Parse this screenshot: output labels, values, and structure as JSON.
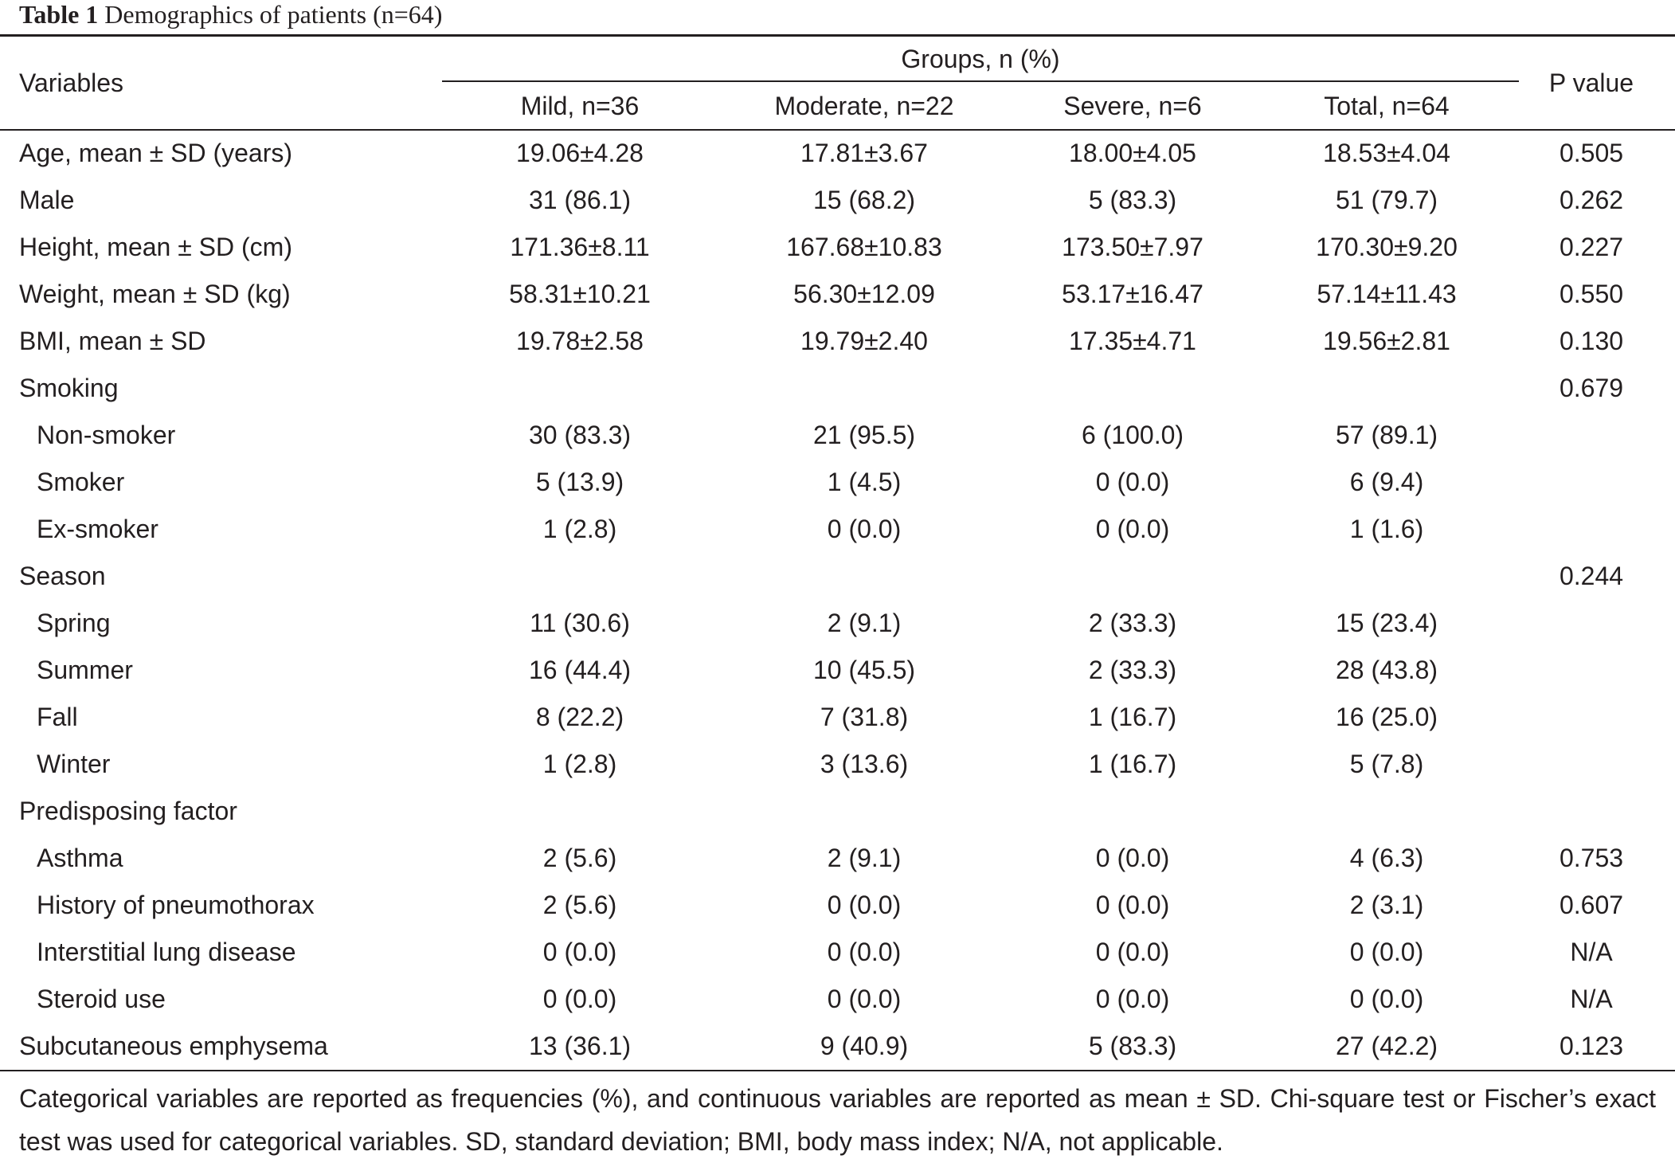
{
  "caption": {
    "number": "Table 1",
    "title": "Demographics of patients (n=64)"
  },
  "header": {
    "variables": "Variables",
    "groups": "Groups, n (%)",
    "p_value": "P value",
    "columns": [
      "Mild, n=36",
      "Moderate, n=22",
      "Severe, n=6",
      "Total, n=64"
    ]
  },
  "rows": [
    {
      "label": "Age, mean ± SD (years)",
      "indent": false,
      "mild": "19.06±4.28",
      "moderate": "17.81±3.67",
      "severe": "18.00±4.05",
      "total": "18.53±4.04",
      "p": "0.505"
    },
    {
      "label": "Male",
      "indent": false,
      "mild": "31 (86.1)",
      "moderate": "15 (68.2)",
      "severe": "5 (83.3)",
      "total": "51 (79.7)",
      "p": "0.262"
    },
    {
      "label": "Height, mean ± SD (cm)",
      "indent": false,
      "mild": "171.36±8.11",
      "moderate": "167.68±10.83",
      "severe": "173.50±7.97",
      "total": "170.30±9.20",
      "p": "0.227"
    },
    {
      "label": "Weight, mean ± SD (kg)",
      "indent": false,
      "mild": "58.31±10.21",
      "moderate": "56.30±12.09",
      "severe": "53.17±16.47",
      "total": "57.14±11.43",
      "p": "0.550"
    },
    {
      "label": "BMI, mean ± SD",
      "indent": false,
      "mild": "19.78±2.58",
      "moderate": "19.79±2.40",
      "severe": "17.35±4.71",
      "total": "19.56±2.81",
      "p": "0.130"
    },
    {
      "label": "Smoking",
      "indent": false,
      "mild": "",
      "moderate": "",
      "severe": "",
      "total": "",
      "p": "0.679"
    },
    {
      "label": "Non-smoker",
      "indent": true,
      "mild": "30 (83.3)",
      "moderate": "21 (95.5)",
      "severe": "6 (100.0)",
      "total": "57 (89.1)",
      "p": ""
    },
    {
      "label": "Smoker",
      "indent": true,
      "mild": "5 (13.9)",
      "moderate": "1 (4.5)",
      "severe": "0 (0.0)",
      "total": "6 (9.4)",
      "p": ""
    },
    {
      "label": "Ex-smoker",
      "indent": true,
      "mild": "1 (2.8)",
      "moderate": "0 (0.0)",
      "severe": "0 (0.0)",
      "total": "1 (1.6)",
      "p": ""
    },
    {
      "label": "Season",
      "indent": false,
      "mild": "",
      "moderate": "",
      "severe": "",
      "total": "",
      "p": "0.244"
    },
    {
      "label": "Spring",
      "indent": true,
      "mild": "11 (30.6)",
      "moderate": "2 (9.1)",
      "severe": "2 (33.3)",
      "total": "15 (23.4)",
      "p": ""
    },
    {
      "label": "Summer",
      "indent": true,
      "mild": "16 (44.4)",
      "moderate": "10 (45.5)",
      "severe": "2 (33.3)",
      "total": "28 (43.8)",
      "p": ""
    },
    {
      "label": "Fall",
      "indent": true,
      "mild": "8 (22.2)",
      "moderate": "7 (31.8)",
      "severe": "1 (16.7)",
      "total": "16 (25.0)",
      "p": ""
    },
    {
      "label": "Winter",
      "indent": true,
      "mild": "1 (2.8)",
      "moderate": "3 (13.6)",
      "severe": "1 (16.7)",
      "total": "5 (7.8)",
      "p": ""
    },
    {
      "label": "Predisposing factor",
      "indent": false,
      "mild": "",
      "moderate": "",
      "severe": "",
      "total": "",
      "p": ""
    },
    {
      "label": "Asthma",
      "indent": true,
      "mild": "2 (5.6)",
      "moderate": "2 (9.1)",
      "severe": "0 (0.0)",
      "total": "4 (6.3)",
      "p": "0.753"
    },
    {
      "label": "History of pneumothorax",
      "indent": true,
      "mild": "2 (5.6)",
      "moderate": "0 (0.0)",
      "severe": "0 (0.0)",
      "total": "2 (3.1)",
      "p": "0.607"
    },
    {
      "label": "Interstitial lung disease",
      "indent": true,
      "mild": "0 (0.0)",
      "moderate": "0 (0.0)",
      "severe": "0 (0.0)",
      "total": "0 (0.0)",
      "p": "N/A"
    },
    {
      "label": "Steroid use",
      "indent": true,
      "mild": "0 (0.0)",
      "moderate": "0 (0.0)",
      "severe": "0 (0.0)",
      "total": "0 (0.0)",
      "p": "N/A"
    },
    {
      "label": "Subcutaneous emphysema",
      "indent": false,
      "mild": "13 (36.1)",
      "moderate": "9 (40.9)",
      "severe": "5 (83.3)",
      "total": "27 (42.2)",
      "p": "0.123"
    }
  ],
  "footnote": "Categorical variables are reported as frequencies (%), and continuous variables are reported as mean ± SD. Chi-square test or Fischer’s exact test was used for categorical variables. SD, standard deviation; BMI, body mass index; N/A, not applicable."
}
